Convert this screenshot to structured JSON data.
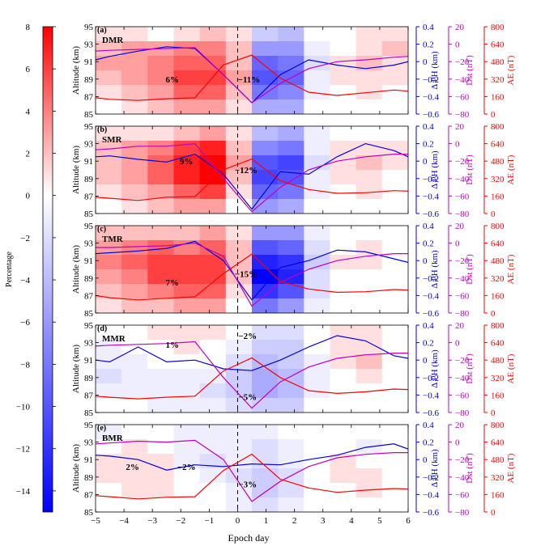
{
  "colorbar": {
    "label": "Percentage",
    "ticks": [
      "8",
      "6",
      "4",
      "2",
      "0",
      "−2",
      "−4",
      "−6",
      "−8",
      "−10",
      "−12",
      "−14"
    ],
    "range": [
      -15,
      8
    ],
    "colors": {
      "low": "#0000ff",
      "mid": "#ffffff",
      "high": "#ff0000"
    }
  },
  "shared_axes": {
    "xlabel": "Epoch day",
    "xticks": [
      "−5",
      "−4",
      "−3",
      "−2",
      "−1",
      "0",
      "1",
      "2",
      "3",
      "4",
      "5",
      "6"
    ],
    "xlim": [
      -5,
      6
    ],
    "epoch_line": 0
  },
  "axis_labels": {
    "altitude": "Altitude (km)",
    "dph": "Δ PH (km)",
    "dst": "Dst (nT)",
    "ae": "AE (nT)"
  },
  "colors": {
    "dph": "#0000e6",
    "dst": "#c000c0",
    "ae": "#ff0000"
  },
  "chart_data": [
    {
      "type": "heatmap",
      "panel": "(a)",
      "name": "DMR",
      "ylim": [
        85,
        95
      ],
      "yticks": [
        "95",
        "93",
        "91",
        "89",
        "87",
        "85"
      ],
      "dph_ticks": [
        "0.4",
        "0.2",
        "0",
        "−0.2",
        "−0.4",
        "−0.6"
      ],
      "dst_ticks": [
        "20",
        "0",
        "−20",
        "−40",
        "−60",
        "−80"
      ],
      "ae_ticks": [
        "800",
        "640",
        "480",
        "320",
        "160",
        "0"
      ],
      "annotations": [
        {
          "text": "6%",
          "x": -2.3,
          "alt": 89.0
        },
        {
          "text": "−11%",
          "x": 0.4,
          "alt": 89.0
        }
      ],
      "series": [
        {
          "name": "Δ PH",
          "axis": "dph",
          "x": [
            -5,
            -4.5,
            -3.5,
            -2.5,
            -1.5,
            -0.5,
            0.5,
            1.5,
            2.5,
            3.5,
            4.5,
            5.5,
            6
          ],
          "values": [
            0.02,
            0.06,
            0.12,
            0.17,
            0.15,
            -0.15,
            -0.47,
            -0.15,
            0.02,
            -0.04,
            -0.08,
            -0.04,
            0.0
          ]
        },
        {
          "name": "Dst",
          "axis": "dst",
          "x": [
            -5,
            -4.5,
            -3.5,
            -2.5,
            -1.5,
            -0.5,
            0.5,
            1.5,
            2.5,
            3.5,
            4.5,
            5.5,
            6
          ],
          "values": [
            -8,
            -7,
            -6,
            -5,
            -4,
            -35,
            -67,
            -45,
            -28,
            -20,
            -18,
            -15,
            -14
          ]
        },
        {
          "name": "AE",
          "axis": "ae",
          "x": [
            -5,
            -4.5,
            -3.5,
            -2.5,
            -1.5,
            -0.5,
            0.5,
            1.5,
            2.5,
            3.5,
            4.5,
            5.5,
            6
          ],
          "values": [
            150,
            135,
            125,
            140,
            150,
            450,
            540,
            330,
            200,
            170,
            195,
            220,
            210
          ]
        }
      ],
      "grid_values": [
        [
          1,
          1,
          0,
          1,
          2,
          1,
          -3,
          -4,
          0,
          0,
          1,
          1
        ],
        [
          2,
          3,
          3,
          4,
          4,
          2,
          -6,
          -6,
          -1,
          0,
          1,
          2
        ],
        [
          3,
          3,
          4,
          5,
          5,
          2,
          -9,
          -8,
          -2,
          1,
          2,
          1
        ],
        [
          2,
          3,
          4,
          6,
          6,
          3,
          -10,
          -9,
          -1,
          1,
          1,
          1
        ],
        [
          1,
          2,
          3,
          5,
          5,
          2,
          -8,
          -7,
          -1,
          0,
          1,
          0
        ],
        [
          0,
          1,
          2,
          3,
          3,
          1,
          -5,
          -5,
          0,
          0,
          0,
          0
        ]
      ]
    },
    {
      "type": "heatmap",
      "panel": "(b)",
      "name": "SMR",
      "ylim": [
        85,
        95
      ],
      "yticks": [
        "95",
        "93",
        "91",
        "89",
        "87",
        "85"
      ],
      "dph_ticks": [
        "0.4",
        "0.2",
        "0",
        "−0.2",
        "−0.4",
        "−0.6"
      ],
      "dst_ticks": [
        "20",
        "0",
        "−20",
        "−40",
        "−60",
        "−80"
      ],
      "ae_ticks": [
        "800",
        "640",
        "480",
        "320",
        "160",
        "0"
      ],
      "annotations": [
        {
          "text": "9%",
          "x": -1.8,
          "alt": 91.0
        },
        {
          "text": "−12%",
          "x": 0.3,
          "alt": 90.0
        }
      ],
      "series": [
        {
          "name": "Δ PH",
          "axis": "dph",
          "x": [
            -5,
            -4.5,
            -3.5,
            -2.5,
            -1.5,
            -0.5,
            0.5,
            1.5,
            2.5,
            3.5,
            4.5,
            5.5,
            6
          ],
          "values": [
            0.05,
            0.06,
            0.02,
            -0.01,
            0.08,
            -0.15,
            -0.55,
            -0.12,
            -0.15,
            0.05,
            0.2,
            0.12,
            0.05
          ]
        },
        {
          "name": "Dst",
          "axis": "dst",
          "x": [
            -5,
            -4.5,
            -3.5,
            -2.5,
            -1.5,
            -0.5,
            0.5,
            1.5,
            2.5,
            3.5,
            4.5,
            5.5,
            6
          ],
          "values": [
            -7,
            -6,
            -3,
            -3,
            0,
            -40,
            -78,
            -50,
            -30,
            -20,
            -15,
            -12,
            -12
          ]
        },
        {
          "name": "AE",
          "axis": "ae",
          "x": [
            -5,
            -4.5,
            -3.5,
            -2.5,
            -1.5,
            -0.5,
            0.5,
            1.5,
            2.5,
            3.5,
            4.5,
            5.5,
            6
          ],
          "values": [
            150,
            140,
            120,
            150,
            155,
            400,
            500,
            300,
            220,
            185,
            190,
            210,
            205
          ]
        }
      ],
      "grid_values": [
        [
          1,
          1,
          1,
          2,
          3,
          1,
          -4,
          -5,
          -1,
          0,
          0,
          0
        ],
        [
          2,
          3,
          4,
          6,
          7,
          2,
          -7,
          -8,
          -1,
          1,
          1,
          1
        ],
        [
          2,
          3,
          5,
          7,
          8,
          3,
          -10,
          -11,
          -2,
          1,
          2,
          1
        ],
        [
          2,
          3,
          5,
          7,
          8,
          2,
          -11,
          -10,
          -1,
          1,
          1,
          0
        ],
        [
          1,
          2,
          3,
          5,
          6,
          1,
          -9,
          -8,
          -1,
          0,
          1,
          0
        ],
        [
          0,
          1,
          2,
          3,
          3,
          0,
          -6,
          -5,
          0,
          0,
          0,
          0
        ]
      ]
    },
    {
      "type": "heatmap",
      "panel": "(c)",
      "name": "TMR",
      "ylim": [
        85,
        95
      ],
      "yticks": [
        "95",
        "93",
        "91",
        "89",
        "87",
        "85"
      ],
      "dph_ticks": [
        "0.4",
        "0.2",
        "0",
        "−0.2",
        "−0.4",
        "−0.6"
      ],
      "dst_ticks": [
        "20",
        "0",
        "−20",
        "−40",
        "−60",
        "−80"
      ],
      "ae_ticks": [
        "800",
        "640",
        "480",
        "320",
        "160",
        "0"
      ],
      "annotations": [
        {
          "text": "7%",
          "x": -2.3,
          "alt": 88.5
        },
        {
          "text": "−15%",
          "x": 0.3,
          "alt": 89.5
        }
      ],
      "series": [
        {
          "name": "Δ PH",
          "axis": "dph",
          "x": [
            -5,
            -4.5,
            -3.5,
            -2.5,
            -1.5,
            -0.5,
            0.5,
            1.5,
            2.5,
            3.5,
            4.5,
            5.5,
            6
          ],
          "values": [
            0.08,
            0.09,
            0.11,
            0.14,
            0.22,
            0.0,
            -0.45,
            -0.08,
            0.0,
            0.12,
            0.1,
            0.02,
            -0.02
          ]
        },
        {
          "name": "Dst",
          "axis": "dst",
          "x": [
            -5,
            -4.5,
            -3.5,
            -2.5,
            -1.5,
            -0.5,
            0.5,
            1.5,
            2.5,
            3.5,
            4.5,
            5.5,
            6
          ],
          "values": [
            -5,
            -5,
            -4,
            -3,
            0,
            -15,
            -72,
            -45,
            -30,
            -20,
            -15,
            -12,
            -12
          ]
        },
        {
          "name": "AE",
          "axis": "ae",
          "x": [
            -5,
            -4.5,
            -3.5,
            -2.5,
            -1.5,
            -0.5,
            0.5,
            1.5,
            2.5,
            3.5,
            4.5,
            5.5,
            6
          ],
          "values": [
            160,
            140,
            120,
            135,
            150,
            360,
            540,
            290,
            220,
            190,
            195,
            215,
            210
          ]
        }
      ],
      "grid_values": [
        [
          2,
          2,
          2,
          2,
          3,
          1,
          -6,
          -6,
          -1,
          0,
          0,
          0
        ],
        [
          3,
          4,
          5,
          4,
          5,
          2,
          -10,
          -9,
          -2,
          0,
          1,
          0
        ],
        [
          4,
          5,
          6,
          6,
          6,
          2,
          -13,
          -12,
          -3,
          1,
          1,
          0
        ],
        [
          3,
          4,
          6,
          6,
          6,
          2,
          -15,
          -13,
          -2,
          0,
          0,
          0
        ],
        [
          2,
          3,
          4,
          5,
          5,
          1,
          -12,
          -10,
          -2,
          0,
          0,
          0
        ],
        [
          1,
          2,
          2,
          3,
          3,
          0,
          -8,
          -6,
          -1,
          0,
          0,
          0
        ]
      ]
    },
    {
      "type": "heatmap",
      "panel": "(d)",
      "name": "MMR",
      "ylim": [
        85,
        95
      ],
      "yticks": [
        "95",
        "93",
        "91",
        "89",
        "87",
        "85"
      ],
      "dph_ticks": [
        "0.4",
        "0.2",
        "0",
        "−0.2",
        "−0.4",
        "−0.6"
      ],
      "dst_ticks": [
        "20",
        "0",
        "−20",
        "−40",
        "−60",
        "−80"
      ],
      "ae_ticks": [
        "800",
        "640",
        "480",
        "320",
        "160",
        "0"
      ],
      "annotations": [
        {
          "text": "1%",
          "x": -2.3,
          "alt": 92.8
        },
        {
          "text": "−2%",
          "x": 0.35,
          "alt": 93.8
        },
        {
          "text": "−5%",
          "x": 0.35,
          "alt": 86.8
        }
      ],
      "series": [
        {
          "name": "Δ PH",
          "axis": "dph",
          "x": [
            -5,
            -4.5,
            -3.5,
            -2.5,
            -1.5,
            -0.5,
            0.5,
            1.5,
            2.5,
            3.5,
            4.5,
            5.5,
            6
          ],
          "values": [
            0.0,
            -0.02,
            0.15,
            -0.02,
            0.0,
            -0.1,
            -0.12,
            0.0,
            0.15,
            0.28,
            0.22,
            0.05,
            0.02
          ]
        },
        {
          "name": "Dst",
          "axis": "dst",
          "x": [
            -5,
            -4.5,
            -3.5,
            -2.5,
            -1.5,
            -0.5,
            0.5,
            1.5,
            2.5,
            3.5,
            4.5,
            5.5,
            6
          ],
          "values": [
            -4,
            -3,
            -2,
            -1,
            1,
            -40,
            -75,
            -45,
            -28,
            -18,
            -14,
            -12,
            -12
          ]
        },
        {
          "name": "AE",
          "axis": "ae",
          "x": [
            -5,
            -4.5,
            -3.5,
            -2.5,
            -1.5,
            -0.5,
            0.5,
            1.5,
            2.5,
            3.5,
            4.5,
            5.5,
            6
          ],
          "values": [
            150,
            140,
            125,
            140,
            150,
            380,
            500,
            320,
            200,
            175,
            190,
            215,
            210
          ]
        }
      ],
      "grid_values": [
        [
          0,
          0,
          1,
          1,
          1,
          0,
          -2,
          -2,
          0,
          1,
          1,
          0
        ],
        [
          -1,
          0,
          0,
          1,
          0,
          -1,
          -3,
          -3,
          0,
          1,
          1,
          0
        ],
        [
          -1,
          -1,
          0,
          0,
          0,
          -2,
          -4,
          -3,
          -1,
          1,
          2,
          0
        ],
        [
          -2,
          -1,
          -1,
          -1,
          -1,
          -3,
          -5,
          -4,
          -1,
          0,
          1,
          0
        ],
        [
          -1,
          -1,
          -1,
          -1,
          -2,
          -3,
          -5,
          -4,
          -1,
          0,
          0,
          0
        ],
        [
          0,
          0,
          -1,
          -1,
          -1,
          -2,
          -3,
          -3,
          0,
          0,
          0,
          0
        ]
      ]
    },
    {
      "type": "heatmap",
      "panel": "(e)",
      "name": "BMR",
      "ylim": [
        85,
        95
      ],
      "yticks": [
        "95",
        "93",
        "91",
        "89",
        "87",
        "85"
      ],
      "dph_ticks": [
        "0.4",
        "0.2",
        "0",
        "−0.2",
        "−0.4",
        "−0.6"
      ],
      "dst_ticks": [
        "20",
        "0",
        "−20",
        "−40",
        "−60",
        "−80"
      ],
      "ae_ticks": [
        "800",
        "640",
        "480",
        "320",
        "160",
        "0"
      ],
      "annotations": [
        {
          "text": "2%",
          "x": -3.7,
          "alt": 90.2
        },
        {
          "text": "−2%",
          "x": -1.8,
          "alt": 90.2
        },
        {
          "text": "−3%",
          "x": 0.35,
          "alt": 88.2
        }
      ],
      "series": [
        {
          "name": "Δ PH",
          "axis": "dph",
          "x": [
            -5,
            -4.5,
            -3.5,
            -2.5,
            -1.5,
            -0.5,
            0.5,
            1.5,
            2.5,
            3.5,
            4.5,
            5.5,
            6
          ],
          "values": [
            0.05,
            0.04,
            0.0,
            -0.12,
            -0.06,
            -0.08,
            -0.05,
            -0.06,
            0.0,
            0.05,
            0.14,
            0.18,
            0.12
          ]
        },
        {
          "name": "Dst",
          "axis": "dst",
          "x": [
            -5,
            -4.5,
            -3.5,
            -2.5,
            -1.5,
            -0.5,
            0.5,
            1.5,
            2.5,
            3.5,
            4.5,
            5.5,
            6
          ],
          "values": [
            -2,
            -1,
            1,
            0,
            2,
            -20,
            -68,
            -45,
            -28,
            -18,
            -14,
            -12,
            -12
          ]
        },
        {
          "name": "AE",
          "axis": "ae",
          "x": [
            -5,
            -4.5,
            -3.5,
            -2.5,
            -1.5,
            -0.5,
            0.5,
            1.5,
            2.5,
            3.5,
            4.5,
            5.5,
            6
          ],
          "values": [
            150,
            140,
            120,
            135,
            140,
            380,
            530,
            300,
            220,
            180,
            200,
            215,
            210
          ]
        }
      ],
      "grid_values": [
        [
          -1,
          0,
          0,
          -1,
          -1,
          -1,
          -1,
          0,
          0,
          0,
          0,
          0
        ],
        [
          0,
          1,
          0,
          -1,
          -1,
          -1,
          -2,
          -1,
          0,
          0,
          -1,
          0
        ],
        [
          1,
          1,
          1,
          -1,
          -2,
          -1,
          -2,
          -1,
          0,
          1,
          0,
          0
        ],
        [
          1,
          1,
          1,
          0,
          -1,
          -2,
          -3,
          -2,
          0,
          1,
          1,
          0
        ],
        [
          0,
          1,
          1,
          0,
          0,
          -1,
          -3,
          -2,
          0,
          0,
          1,
          0
        ],
        [
          0,
          0,
          0,
          0,
          0,
          -1,
          -2,
          -1,
          0,
          0,
          0,
          0
        ]
      ]
    }
  ]
}
